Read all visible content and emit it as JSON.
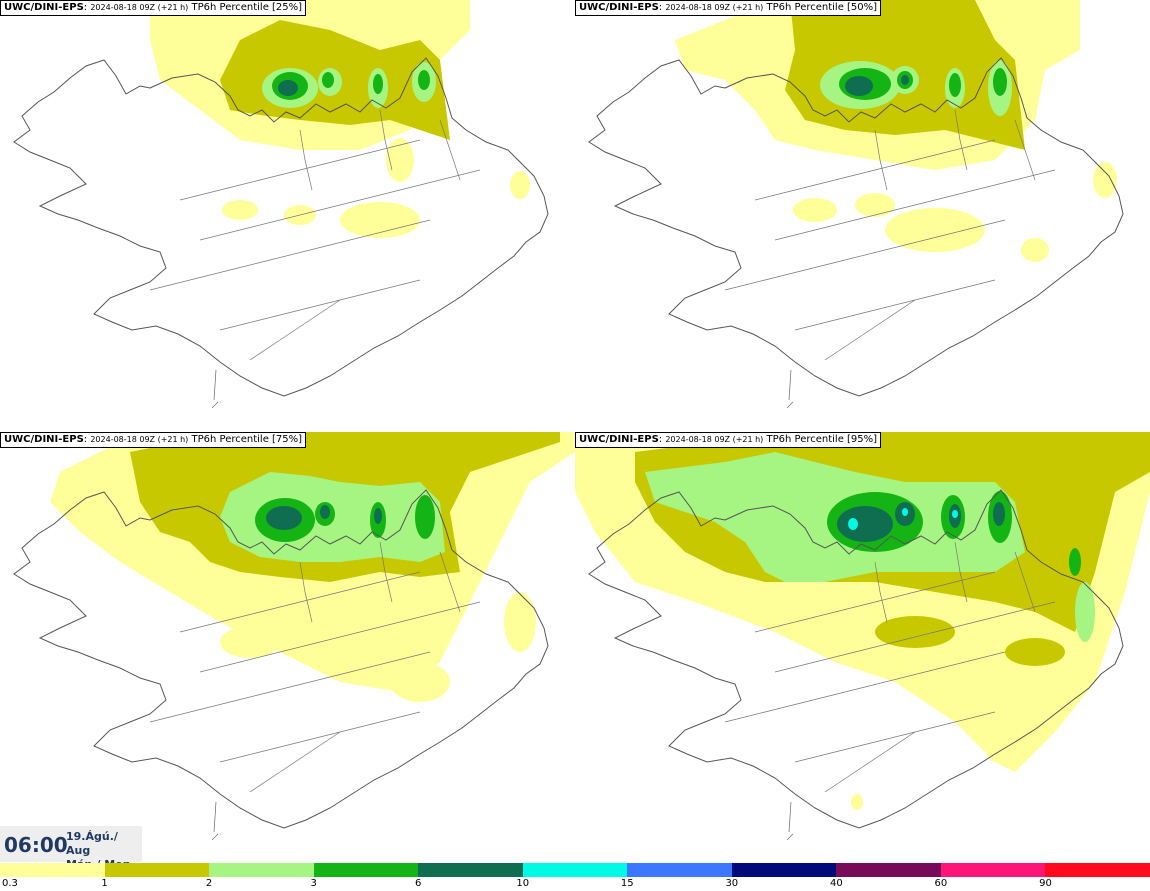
{
  "panels": [
    {
      "model": "UWC/DINI-EPS",
      "run": "2024-08-18 09Z (+21 h)",
      "field": "TP6h Percentile [25%]"
    },
    {
      "model": "UWC/DINI-EPS",
      "run": "2024-08-18 09Z (+21 h)",
      "field": "TP6h Percentile [50%]"
    },
    {
      "model": "UWC/DINI-EPS",
      "run": "2024-08-18 09Z (+21 h)",
      "field": "TP6h Percentile [75%]"
    },
    {
      "model": "UWC/DINI-EPS",
      "run": "2024-08-18 09Z (+21 h)",
      "field": "TP6h Percentile [95%]"
    }
  ],
  "valid_time": {
    "time": "06:00",
    "date_line": "19.Ágú./ Aug",
    "day_line": "Mán./ Mon"
  },
  "legend": {
    "ticks": [
      "0.3",
      "1",
      "2",
      "3",
      "6",
      "10",
      "15",
      "30",
      "40",
      "60",
      "90"
    ],
    "colors": [
      "#ffff99",
      "#c8c800",
      "#a6f582",
      "#14b414",
      "#0f6e50",
      "#00fae6",
      "#3c78ff",
      "#000a78",
      "#780a5a",
      "#ff1478",
      "#ff0a1e"
    ]
  },
  "colors": {
    "c1": "#ffff99",
    "c2": "#c8c800",
    "c3": "#a6f582",
    "c4": "#14b414",
    "c5": "#0f6e50",
    "c6": "#00fae6"
  }
}
